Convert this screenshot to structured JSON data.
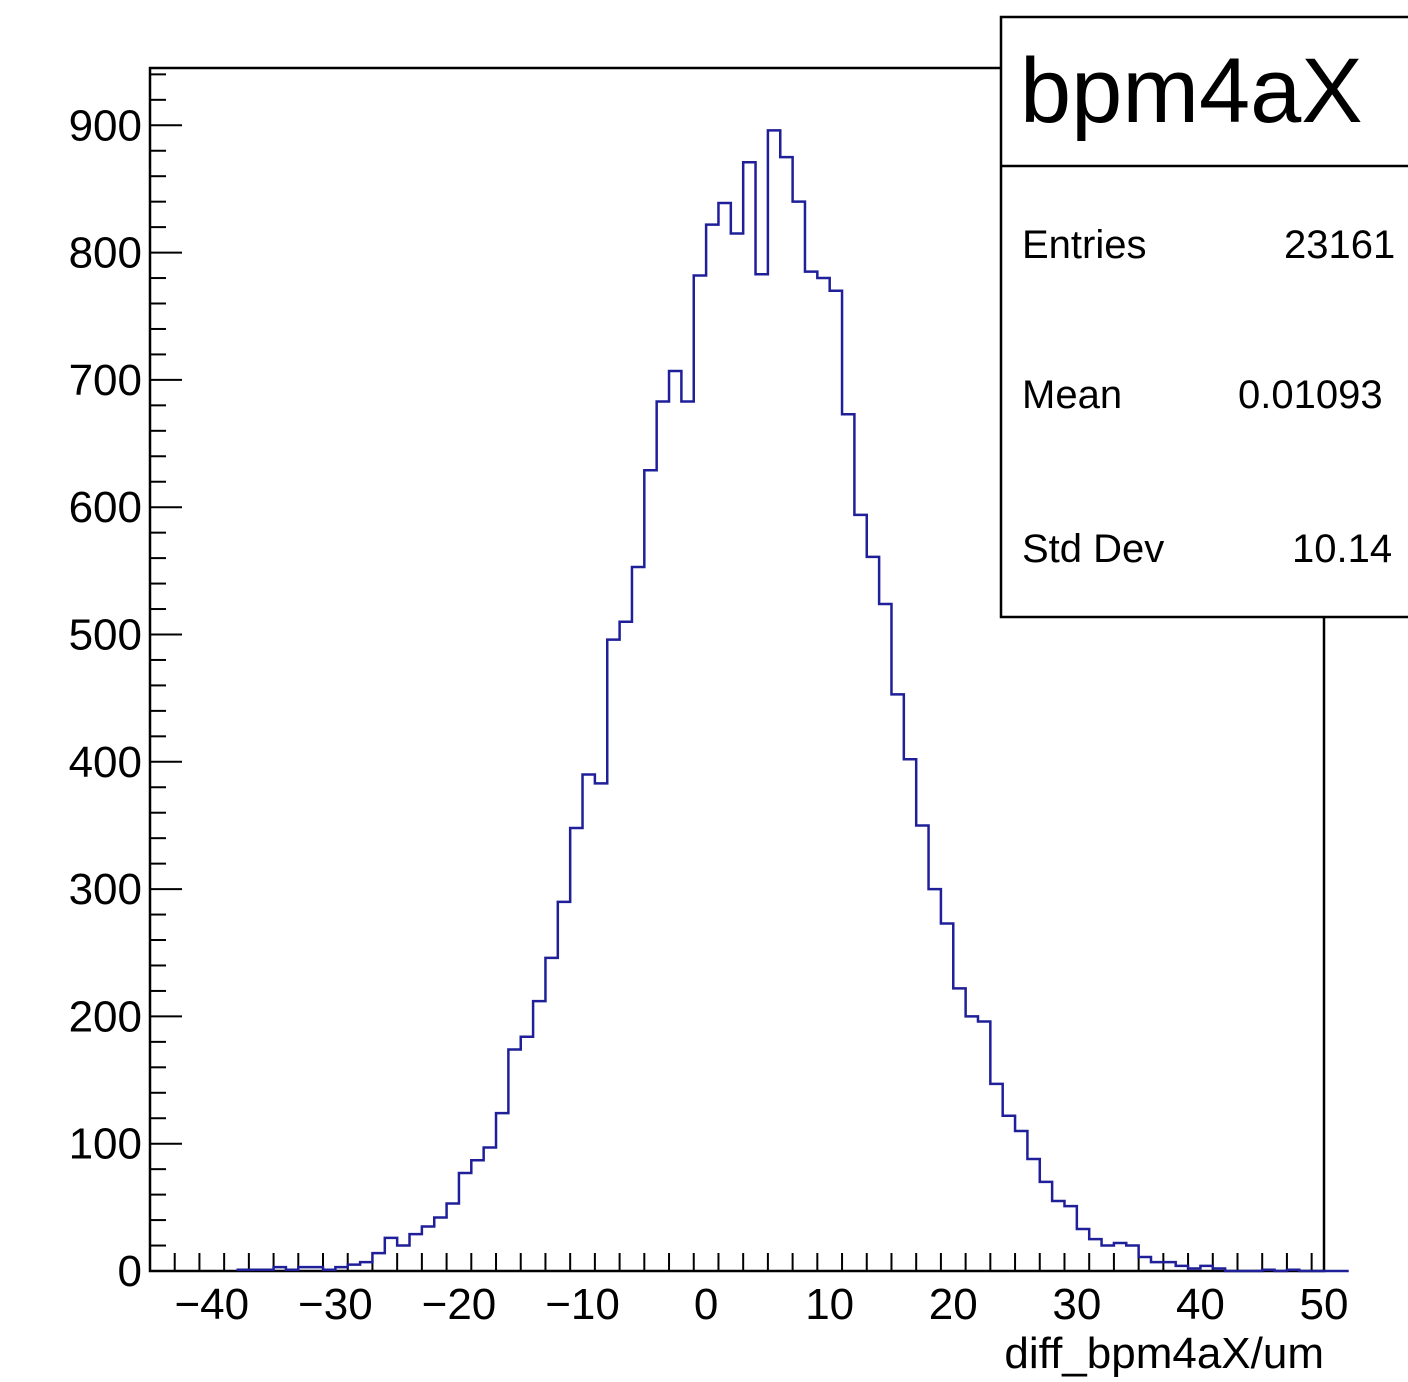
{
  "chart_data": {
    "type": "bar",
    "title": "",
    "xlabel": "diff_bpm4aX/um",
    "ylabel": "",
    "xlim": [
      -45,
      50
    ],
    "ylim": [
      0,
      945
    ],
    "x_ticks": [
      -40,
      -30,
      -20,
      -10,
      0,
      10,
      20,
      30,
      40,
      50
    ],
    "y_ticks": [
      0,
      100,
      200,
      300,
      400,
      500,
      600,
      700,
      800,
      900
    ],
    "x_tick_labels": [
      "−40",
      "−30",
      "−20",
      "−10",
      "0",
      "10",
      "20",
      "30",
      "40",
      "50"
    ],
    "y_tick_labels": [
      "0",
      "100",
      "200",
      "300",
      "400",
      "500",
      "600",
      "700",
      "800",
      "900"
    ],
    "grid": false,
    "line_color": "#1f1f9a",
    "bin_start": -38,
    "bin_width": 1,
    "values": [
      1,
      1,
      1,
      3,
      1,
      3,
      3,
      1,
      3,
      5,
      7,
      14,
      26,
      20,
      29,
      35,
      42,
      53,
      77,
      87,
      97,
      124,
      174,
      184,
      212,
      246,
      290,
      348,
      390,
      383,
      496,
      510,
      553,
      629,
      683,
      707,
      683,
      782,
      822,
      839,
      815,
      871,
      783,
      896,
      875,
      840,
      785,
      780,
      770,
      673,
      594,
      561,
      524,
      453,
      402,
      350,
      300,
      273,
      222,
      200,
      196,
      147,
      122,
      110,
      88,
      70,
      55,
      51,
      33,
      25,
      20,
      22,
      20,
      11,
      7,
      7,
      4,
      2,
      4,
      2,
      0,
      0,
      0,
      1,
      0,
      1,
      0,
      0,
      0,
      0
    ]
  },
  "stats_box": {
    "title": "bpm4aX",
    "rows": [
      {
        "label": "Entries",
        "value": "23161"
      },
      {
        "label": "Mean",
        "value": "0.01093"
      },
      {
        "label": "Std Dev",
        "value": "10.14"
      }
    ]
  }
}
